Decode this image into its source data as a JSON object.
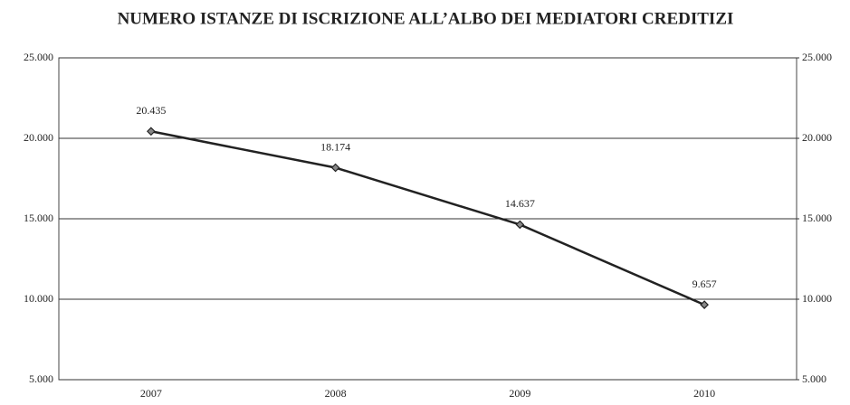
{
  "chart_data": {
    "type": "line",
    "title": "NUMERO ISTANZE DI ISCRIZIONE ALL’ALBO DEI MEDIATORI CREDITIZI",
    "categories": [
      "2007",
      "2008",
      "2009",
      "2010"
    ],
    "values": [
      20435,
      18174,
      14637,
      9657
    ],
    "value_labels": [
      "20.435",
      "18.174",
      "14.637",
      "9.657"
    ],
    "color": "#222222",
    "ylim": [
      5000,
      25000
    ],
    "yticks": [
      {
        "value": 5000,
        "label": "5.000"
      },
      {
        "value": 10000,
        "label": "10.000"
      },
      {
        "value": 15000,
        "label": "15.000"
      },
      {
        "value": 20000,
        "label": "20.000"
      },
      {
        "value": 25000,
        "label": "25.000"
      }
    ],
    "y2lim": [
      5000,
      25000
    ],
    "y2ticks": [
      {
        "value": 5000,
        "label": "5.000"
      },
      {
        "value": 10000,
        "label": "10.000"
      },
      {
        "value": 15000,
        "label": "15.000"
      },
      {
        "value": 20000,
        "label": "20.000"
      },
      {
        "value": 25000,
        "label": "25.000"
      }
    ],
    "grid": true
  }
}
